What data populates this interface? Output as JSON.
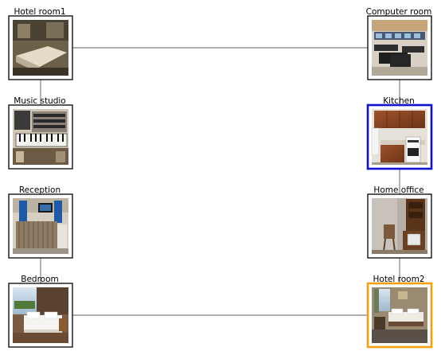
{
  "diagram": {
    "nodes": [
      {
        "id": "hotel-room1",
        "label": "Hotel room1",
        "scene": "hotel1",
        "highlight": ""
      },
      {
        "id": "music-studio",
        "label": "Music studio",
        "scene": "studio",
        "highlight": ""
      },
      {
        "id": "reception",
        "label": "Reception",
        "scene": "reception",
        "highlight": ""
      },
      {
        "id": "bedroom",
        "label": "Bedroom",
        "scene": "bedroom",
        "highlight": ""
      },
      {
        "id": "computer-room",
        "label": "Computer room",
        "scene": "computer",
        "highlight": ""
      },
      {
        "id": "kitchen",
        "label": "Kitchen",
        "scene": "kitchen",
        "highlight": "#1010d0"
      },
      {
        "id": "home-office",
        "label": "Home office",
        "scene": "office",
        "highlight": ""
      },
      {
        "id": "hotel-room2",
        "label": "Hotel room2",
        "scene": "hotel2",
        "highlight": "#f0a010"
      }
    ],
    "edges": [
      {
        "from": "hotel-room1",
        "to": "computer-room"
      },
      {
        "from": "hotel-room1",
        "to": "music-studio"
      },
      {
        "from": "reception",
        "to": "bedroom"
      },
      {
        "from": "bedroom",
        "to": "hotel-room2"
      },
      {
        "from": "computer-room",
        "to": "kitchen"
      },
      {
        "from": "kitchen",
        "to": "home-office"
      },
      {
        "from": "home-office",
        "to": "hotel-room2"
      }
    ],
    "colors": {
      "edge": "#808080",
      "frame": "#000000"
    }
  }
}
